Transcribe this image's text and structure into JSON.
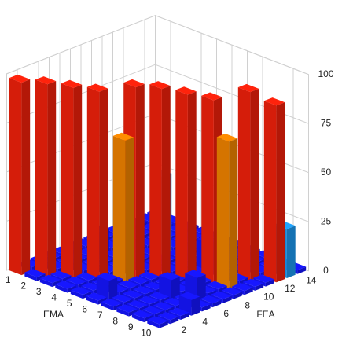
{
  "chart_data": {
    "type": "bar3d",
    "x_label": "EMA",
    "y_label": "FEA",
    "x": [
      1,
      2,
      3,
      4,
      5,
      6,
      7,
      8,
      9,
      10
    ],
    "y": [
      null,
      2,
      null,
      4,
      null,
      6,
      null,
      8,
      null,
      10,
      null,
      12,
      null,
      14
    ],
    "values": [
      [
        98,
        2,
        2,
        2,
        2,
        2,
        2,
        2,
        2,
        2,
        2,
        2,
        2,
        2
      ],
      [
        2,
        98,
        2,
        2,
        2,
        2,
        12,
        2,
        2,
        2,
        2,
        2,
        2,
        2
      ],
      [
        2,
        2,
        97,
        2,
        2,
        2,
        2,
        2,
        2,
        2,
        2,
        2,
        2,
        2
      ],
      [
        2,
        2,
        2,
        96,
        2,
        2,
        2,
        2,
        2,
        40,
        2,
        2,
        2,
        2
      ],
      [
        2,
        2,
        2,
        2,
        72,
        97,
        2,
        2,
        2,
        2,
        2,
        2,
        2,
        2
      ],
      [
        2,
        10,
        2,
        2,
        2,
        2,
        97,
        2,
        2,
        2,
        2,
        2,
        2,
        2
      ],
      [
        2,
        2,
        2,
        2,
        2,
        2,
        2,
        95,
        2,
        15,
        2,
        2,
        2,
        2
      ],
      [
        2,
        2,
        2,
        2,
        10,
        2,
        2,
        2,
        93,
        2,
        2,
        2,
        2,
        2
      ],
      [
        2,
        2,
        2,
        2,
        2,
        12,
        2,
        2,
        75,
        2,
        96,
        2,
        2,
        2
      ],
      [
        2,
        2,
        2,
        8,
        2,
        2,
        2,
        2,
        2,
        2,
        2,
        90,
        25,
        2
      ]
    ],
    "zlim": [
      0,
      100
    ],
    "zticks": [
      0,
      25,
      50,
      75,
      100
    ],
    "grid": true,
    "colorscale": [
      [
        0,
        "#1414ee"
      ],
      [
        20,
        "#1a8fe0"
      ],
      [
        60,
        "#e07a00"
      ],
      [
        85,
        "#e01e0a"
      ]
    ]
  }
}
